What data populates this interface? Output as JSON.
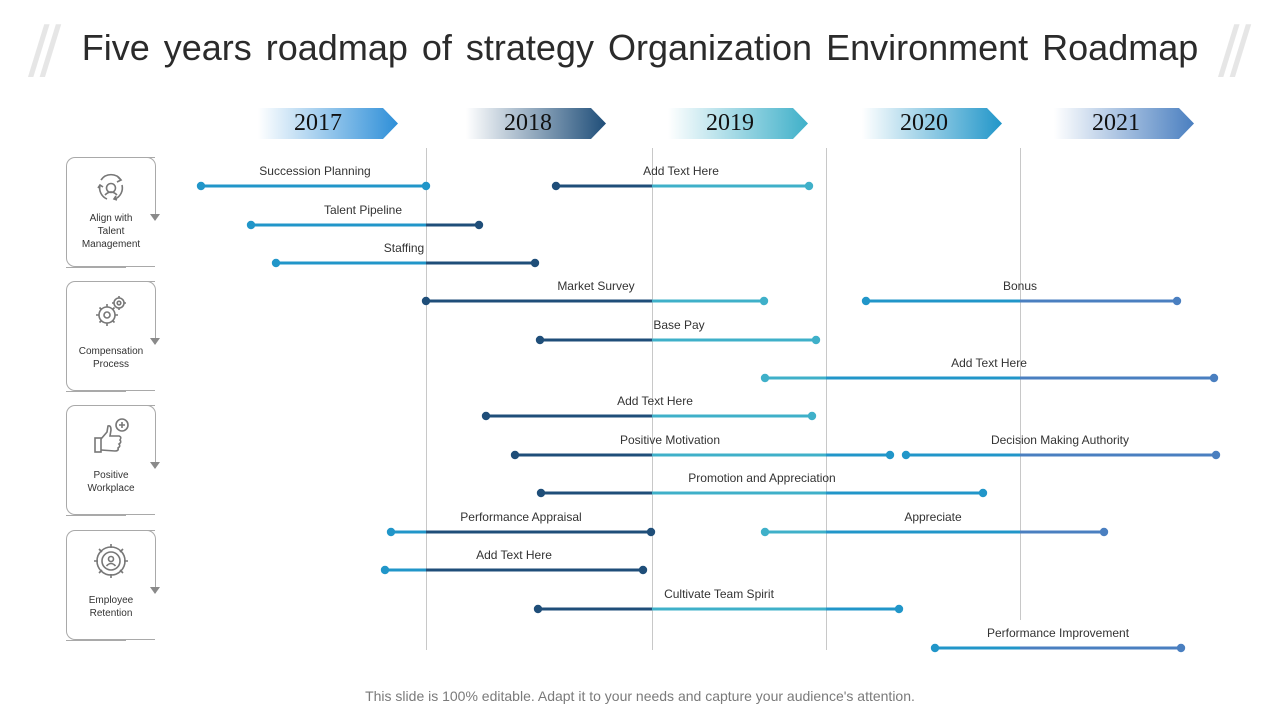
{
  "title": "Five years roadmap of strategy Organization Environment Roadmap",
  "years": [
    "2017",
    "2018",
    "2019",
    "2020",
    "2021"
  ],
  "categories": [
    {
      "label": "Align with Talent Management",
      "icon": "cycle-arrows-icon"
    },
    {
      "label": "Compensation Process",
      "icon": "gears-icon"
    },
    {
      "label": "Positive Workplace",
      "icon": "thumbs-up-plus-icon"
    },
    {
      "label": "Employee Retention",
      "icon": "people-cycle-icon"
    }
  ],
  "bars": [
    {
      "label": "Succession Planning"
    },
    {
      "label": "Add Text Here"
    },
    {
      "label": "Talent Pipeline"
    },
    {
      "label": "Staffing"
    },
    {
      "label": "Market Survey"
    },
    {
      "label": "Bonus"
    },
    {
      "label": "Base Pay"
    },
    {
      "label": "Add Text Here"
    },
    {
      "label": "Add Text Here"
    },
    {
      "label": "Positive Motivation"
    },
    {
      "label": "Decision Making Authority"
    },
    {
      "label": "Promotion and Appreciation"
    },
    {
      "label": "Performance Appraisal"
    },
    {
      "label": "Appreciate"
    },
    {
      "label": "Add Text Here"
    },
    {
      "label": "Cultivate Team Spirit"
    },
    {
      "label": "Performance Improvement"
    }
  ],
  "colors": {
    "navy": "#1f4e79",
    "blue": "#2196c9",
    "teal": "#3fb0c9",
    "steel": "#4a7fc0"
  },
  "footer": "This slide is 100% editable. Adapt it to your needs and capture your audience's attention."
}
